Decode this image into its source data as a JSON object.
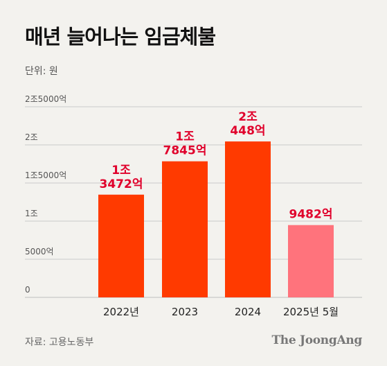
{
  "header": {
    "title": "매년 늘어나는 임금체불",
    "unit": "단위: 원"
  },
  "footer": {
    "source": "자료: 고용노동부",
    "brand": "The JoongAng"
  },
  "colors": {
    "bar_main": "#ff3a00",
    "bar_highlight": "#ff737c",
    "label_main": "#e0002b",
    "label_highlight": "#e0002b",
    "grid": "#c9c9c9",
    "tick_text": "#555555"
  },
  "chart_data": {
    "type": "bar",
    "categories": [
      "2022년",
      "2023",
      "2024",
      "2025년 5월"
    ],
    "values": [
      13472,
      17845,
      20448,
      9482
    ],
    "value_units": "억 원",
    "data_labels": [
      [
        "1조",
        "3472억"
      ],
      [
        "1조",
        "7845억"
      ],
      [
        "2조",
        "448억"
      ],
      [
        "9482억"
      ]
    ],
    "highlight_index": 3,
    "ylim": [
      0,
      25000
    ],
    "yticks": [
      0,
      5000,
      10000,
      15000,
      20000,
      25000
    ],
    "ytick_labels": [
      "0",
      "5000억",
      "1조",
      "1조5000억",
      "2조",
      "2조5000억"
    ],
    "grid": true,
    "title": "매년 늘어나는 임금체불",
    "ylabel": "단위: 원",
    "xlabel": ""
  }
}
